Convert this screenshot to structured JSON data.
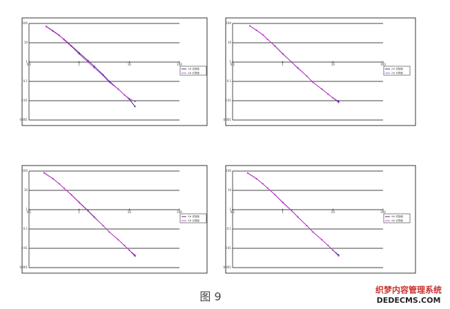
{
  "chart_data": [
    {
      "type": "line",
      "xlog": true,
      "ylog": true,
      "grid": true,
      "legend": "right",
      "xlim": [
        0.1,
        100
      ],
      "ylim": [
        0.001,
        100
      ],
      "xticks": [
        0.1,
        1,
        10,
        100
      ],
      "yticks": [
        0.001,
        0.01,
        0.1,
        1,
        10,
        100
      ],
      "x": [
        0.22,
        0.3,
        0.4,
        0.5,
        0.7,
        1,
        1.5,
        2,
        3,
        4,
        6,
        8,
        10,
        13
      ],
      "series": [
        {
          "name": "1# 试验值",
          "color": "#1a1a7a",
          "values": [
            70,
            40,
            24,
            15,
            7,
            3,
            1.2,
            0.6,
            0.22,
            0.1,
            0.04,
            0.02,
            0.012,
            0.005
          ]
        },
        {
          "name": "1# 计算值",
          "color": "#cc33cc",
          "values": [
            72,
            42,
            25,
            14,
            6.5,
            2.6,
            1,
            0.5,
            0.2,
            0.09,
            0.04,
            0.02,
            0.013,
            0.009
          ]
        }
      ]
    },
    {
      "type": "line",
      "xlog": true,
      "ylog": true,
      "grid": true,
      "legend": "right",
      "xlim": [
        0.1,
        100
      ],
      "ylim": [
        0.001,
        100
      ],
      "xticks": [
        0.1,
        1,
        10,
        100
      ],
      "yticks": [
        0.001,
        0.01,
        0.1,
        1,
        10,
        100
      ],
      "x": [
        0.22,
        0.3,
        0.4,
        0.5,
        0.7,
        1,
        1.5,
        2,
        3,
        4,
        6,
        8,
        10,
        13
      ],
      "series": [
        {
          "name": "2# 试验值",
          "color": "#1a1a7a",
          "values": [
            75,
            44,
            26,
            15,
            6.8,
            2.7,
            1,
            0.5,
            0.19,
            0.09,
            0.04,
            0.022,
            0.014,
            0.009
          ]
        },
        {
          "name": "2# 计算值",
          "color": "#cc33cc",
          "values": [
            76,
            45,
            26,
            15,
            6.6,
            2.6,
            1,
            0.48,
            0.19,
            0.09,
            0.04,
            0.022,
            0.014,
            0.008
          ]
        }
      ]
    },
    {
      "type": "line",
      "xlog": true,
      "ylog": true,
      "grid": true,
      "legend": "right",
      "xlim": [
        0.1,
        100
      ],
      "ylim": [
        0.001,
        100
      ],
      "xticks": [
        0.1,
        1,
        10,
        100
      ],
      "yticks": [
        0.001,
        0.01,
        0.1,
        1,
        10,
        100
      ],
      "x": [
        0.2,
        0.3,
        0.4,
        0.5,
        0.7,
        1,
        1.5,
        2,
        3,
        4,
        6,
        8,
        10,
        13
      ],
      "series": [
        {
          "name": "3# 试验值",
          "color": "#1a1a7a",
          "values": [
            80,
            40,
            22,
            13,
            6,
            2.4,
            0.9,
            0.42,
            0.15,
            0.07,
            0.028,
            0.014,
            0.008,
            0.004
          ]
        },
        {
          "name": "3# 计算值",
          "color": "#cc33cc",
          "values": [
            82,
            41,
            22,
            13,
            5.8,
            2.3,
            0.85,
            0.4,
            0.15,
            0.07,
            0.028,
            0.014,
            0.008,
            0.0045
          ]
        }
      ]
    },
    {
      "type": "line",
      "xlog": true,
      "ylog": true,
      "grid": true,
      "legend": "right",
      "xlim": [
        0.1,
        100
      ],
      "ylim": [
        0.001,
        100
      ],
      "xticks": [
        0.1,
        1,
        10,
        100
      ],
      "yticks": [
        0.001,
        0.01,
        0.1,
        1,
        10,
        100
      ],
      "x": [
        0.2,
        0.3,
        0.4,
        0.5,
        0.7,
        1,
        1.5,
        2,
        3,
        4,
        6,
        8,
        10,
        13
      ],
      "series": [
        {
          "name": "4# 试验值",
          "color": "#1a1a7a",
          "values": [
            78,
            40,
            22,
            13,
            6,
            2.4,
            0.9,
            0.42,
            0.15,
            0.07,
            0.028,
            0.014,
            0.008,
            0.0045
          ]
        },
        {
          "name": "4# 计算值",
          "color": "#cc33cc",
          "values": [
            80,
            41,
            22,
            13,
            5.9,
            2.3,
            0.88,
            0.41,
            0.15,
            0.07,
            0.028,
            0.014,
            0.008,
            0.004
          ]
        }
      ]
    }
  ],
  "caption": "图 9",
  "watermark": [
    "织梦内容管理系统",
    "DEDECMS.COM"
  ]
}
